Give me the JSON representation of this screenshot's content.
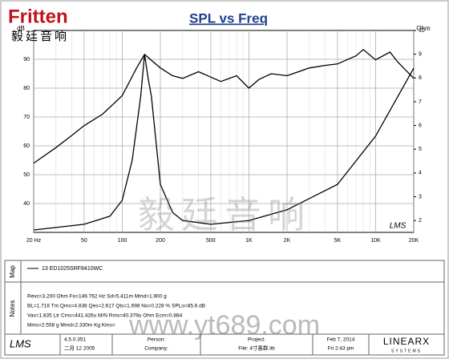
{
  "logo": {
    "brand": "Fritten",
    "chinese": "毅廷音响"
  },
  "watermark": {
    "chinese": "毅廷音响",
    "url": "www.yt689.com"
  },
  "chart_data": {
    "type": "line",
    "title": "SPL vs Freq",
    "y_label": "dB",
    "y2_label": "Ohm",
    "corner_text": "LMS",
    "xscale": "log",
    "xlim": [
      20,
      20000
    ],
    "xticks": [
      {
        "value": 20,
        "label": "20 Hz"
      },
      50,
      100,
      200,
      500,
      {
        "value": 1000,
        "label": "1K"
      },
      {
        "value": 2000,
        "label": "2K"
      },
      {
        "value": 5000,
        "label": "5K"
      },
      {
        "value": 10000,
        "label": "10K"
      },
      {
        "value": 20000,
        "label": "20K"
      }
    ],
    "ylim": [
      30,
      100
    ],
    "yticks": [
      40,
      50,
      60,
      70,
      80,
      90
    ],
    "y2lim": [
      1.5,
      10
    ],
    "y2ticks": [
      2,
      3,
      4,
      5,
      6,
      7,
      8,
      9,
      10
    ],
    "grid": true,
    "series": [
      {
        "name": "13  ED1025SRF8410WC",
        "color": "#000000",
        "x": [
          20,
          30,
          40,
          50,
          70,
          100,
          130,
          150,
          200,
          250,
          300,
          400,
          600,
          800,
          1000,
          1200,
          1500,
          2000,
          3000,
          4000,
          5000,
          7000,
          8000,
          10000,
          13000,
          15000,
          20000
        ],
        "values": [
          54,
          59.4,
          63.6,
          67,
          71,
          77.4,
          87,
          91.7,
          87,
          84.3,
          83.4,
          85.7,
          82.3,
          84.3,
          80,
          83,
          85,
          84.3,
          87,
          87.9,
          88.4,
          91.2,
          93.4,
          89.8,
          92.5,
          89,
          83.4
        ]
      },
      {
        "axis": "y2",
        "color": "#000000",
        "x": [
          20,
          50,
          80,
          100,
          120,
          140,
          150,
          160,
          170,
          200,
          250,
          300,
          500,
          1000,
          2000,
          5000,
          10000,
          20000
        ],
        "values": [
          1.6,
          1.84,
          2.18,
          2.85,
          4.54,
          7.23,
          8.99,
          8.0,
          7.23,
          3.52,
          2.34,
          2.0,
          1.84,
          2.0,
          2.45,
          3.52,
          5.55,
          8.41
        ]
      }
    ]
  },
  "panel": {
    "map_label": "Map",
    "notes_label": "Notes",
    "notes": [
      "Revc=3.200 Ohm  Fo=149.762 Hz  Sd=5.411m  Mmd=1.900 g",
      "BL=1.716 Tm  Qms=4.838  Qes=2.617  Qts=1.698  No=0.228 %  SPLo=85.6 dB",
      "Vas=1.835 Ltr  Cms=441.426u M/N  Rms=40.379u Ohm  Ecm=0.884",
      "Mms=2.558 g  Mmd=2.330m Kg  Kms="
    ],
    "footer": {
      "app": "LMS",
      "version": "4.5.0.351",
      "build_date": "二月 12 2005",
      "person": "Person:",
      "company": "Company:",
      "project": "Project:",
      "file": "File: 4寸喜群.lib",
      "date": "Feb 7, 2014",
      "time": "Fri 2:43 pm",
      "vendor": "LINEARX",
      "vendor_sub": "SYSTEMS"
    }
  }
}
